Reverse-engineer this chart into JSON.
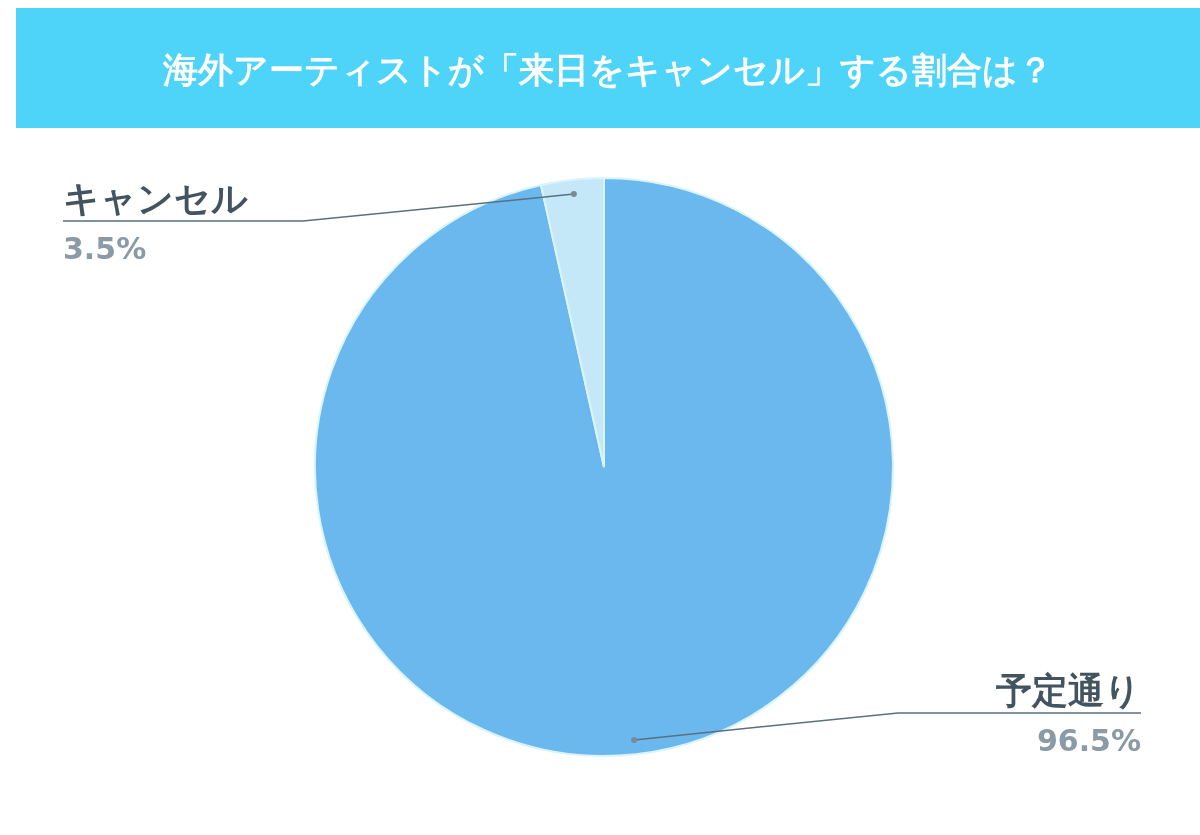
{
  "chart_data": {
    "type": "pie",
    "title": "海外アーティストが「来日をキャンセル」する割合は？",
    "categories": [
      "予定通り",
      "キャンセル"
    ],
    "values": [
      96.5,
      3.5
    ],
    "value_labels": [
      "96.5%",
      "3.5%"
    ],
    "colors": [
      "#6bb8ee",
      "#c5e8f8"
    ]
  }
}
